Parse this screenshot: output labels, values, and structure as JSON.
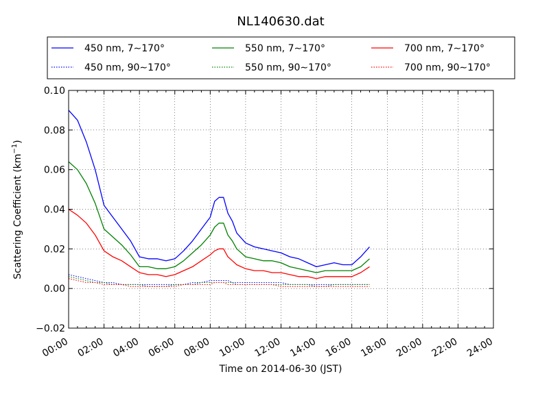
{
  "chart_data": {
    "type": "line",
    "title": "NL140630.dat",
    "xlabel": "Time on 2014-06-30 (JST)",
    "ylabel": "Scattering Coefficient (km",
    "ylabel_superscript": "−1",
    "ylabel_suffix": ")",
    "xlim": [
      0,
      24
    ],
    "ylim": [
      -0.02,
      0.1
    ],
    "x_ticks": [
      0,
      2,
      4,
      6,
      8,
      10,
      12,
      14,
      16,
      18,
      20,
      22,
      24
    ],
    "x_tick_labels": [
      "00:00",
      "02:00",
      "04:00",
      "06:00",
      "08:00",
      "10:00",
      "12:00",
      "14:00",
      "16:00",
      "18:00",
      "20:00",
      "22:00",
      "24:00"
    ],
    "y_ticks": [
      -0.02,
      0.0,
      0.02,
      0.04,
      0.06,
      0.08,
      0.1
    ],
    "y_tick_labels": [
      "−0.02",
      "0.00",
      "0.02",
      "0.04",
      "0.06",
      "0.08",
      "0.10"
    ],
    "grid": true,
    "legend_position": "top",
    "x": [
      0.0,
      0.5,
      1.0,
      1.5,
      2.0,
      2.5,
      3.0,
      3.5,
      4.0,
      4.5,
      5.0,
      5.5,
      6.0,
      6.5,
      7.0,
      7.5,
      8.0,
      8.25,
      8.5,
      8.75,
      9.0,
      9.25,
      9.5,
      10.0,
      10.5,
      11.0,
      11.5,
      12.0,
      12.5,
      13.0,
      13.5,
      14.0,
      14.5,
      15.0,
      15.5,
      16.0,
      16.5,
      17.0
    ],
    "series": [
      {
        "name": "450 nm, 7∼170°",
        "color": "#0000ff",
        "style": "solid",
        "values": [
          0.09,
          0.085,
          0.074,
          0.06,
          0.042,
          0.036,
          0.03,
          0.024,
          0.016,
          0.015,
          0.015,
          0.014,
          0.015,
          0.019,
          0.024,
          0.03,
          0.036,
          0.044,
          0.046,
          0.046,
          0.038,
          0.034,
          0.028,
          0.023,
          0.021,
          0.02,
          0.019,
          0.018,
          0.016,
          0.015,
          0.013,
          0.011,
          0.012,
          0.013,
          0.012,
          0.012,
          0.016,
          0.021
        ]
      },
      {
        "name": "450 nm, 90∼170°",
        "color": "#0000ff",
        "style": "dotted",
        "values": [
          0.007,
          0.006,
          0.005,
          0.004,
          0.003,
          0.003,
          0.002,
          0.002,
          0.002,
          0.002,
          0.002,
          0.002,
          0.002,
          0.002,
          0.003,
          0.003,
          0.004,
          0.004,
          0.004,
          0.004,
          0.004,
          0.003,
          0.003,
          0.003,
          0.003,
          0.003,
          0.003,
          0.003,
          0.002,
          0.002,
          0.002,
          0.002,
          0.002,
          0.002,
          0.002,
          0.002,
          0.002,
          0.002
        ]
      },
      {
        "name": "550 nm, 7∼170°",
        "color": "#008000",
        "style": "solid",
        "values": [
          0.064,
          0.06,
          0.053,
          0.043,
          0.03,
          0.026,
          0.022,
          0.017,
          0.011,
          0.011,
          0.01,
          0.01,
          0.011,
          0.014,
          0.018,
          0.022,
          0.027,
          0.031,
          0.033,
          0.033,
          0.027,
          0.024,
          0.02,
          0.016,
          0.015,
          0.014,
          0.014,
          0.013,
          0.011,
          0.01,
          0.009,
          0.008,
          0.009,
          0.009,
          0.009,
          0.009,
          0.011,
          0.015
        ]
      },
      {
        "name": "550 nm, 90∼170°",
        "color": "#008000",
        "style": "dotted",
        "values": [
          0.006,
          0.005,
          0.004,
          0.003,
          0.003,
          0.002,
          0.002,
          0.002,
          0.002,
          0.001,
          0.001,
          0.001,
          0.002,
          0.002,
          0.002,
          0.003,
          0.003,
          0.003,
          0.003,
          0.003,
          0.003,
          0.003,
          0.002,
          0.002,
          0.002,
          0.002,
          0.002,
          0.002,
          0.002,
          0.002,
          0.002,
          0.001,
          0.001,
          0.002,
          0.002,
          0.002,
          0.002,
          0.002
        ]
      },
      {
        "name": "700 nm, 7∼170°",
        "color": "#ff0000",
        "style": "solid",
        "values": [
          0.04,
          0.037,
          0.033,
          0.027,
          0.019,
          0.016,
          0.014,
          0.011,
          0.008,
          0.007,
          0.007,
          0.006,
          0.007,
          0.009,
          0.011,
          0.014,
          0.017,
          0.019,
          0.02,
          0.02,
          0.016,
          0.014,
          0.012,
          0.01,
          0.009,
          0.009,
          0.008,
          0.008,
          0.007,
          0.006,
          0.006,
          0.005,
          0.006,
          0.006,
          0.006,
          0.006,
          0.008,
          0.011
        ]
      },
      {
        "name": "700 nm, 90∼170°",
        "color": "#ff0000",
        "style": "dotted",
        "values": [
          0.005,
          0.004,
          0.003,
          0.003,
          0.002,
          0.002,
          0.002,
          0.001,
          0.001,
          0.001,
          0.001,
          0.001,
          0.001,
          0.002,
          0.002,
          0.002,
          0.002,
          0.003,
          0.003,
          0.003,
          0.002,
          0.002,
          0.002,
          0.002,
          0.002,
          0.002,
          0.002,
          0.001,
          0.001,
          0.001,
          0.001,
          0.001,
          0.001,
          0.001,
          0.001,
          0.001,
          0.001,
          0.001
        ]
      }
    ]
  }
}
